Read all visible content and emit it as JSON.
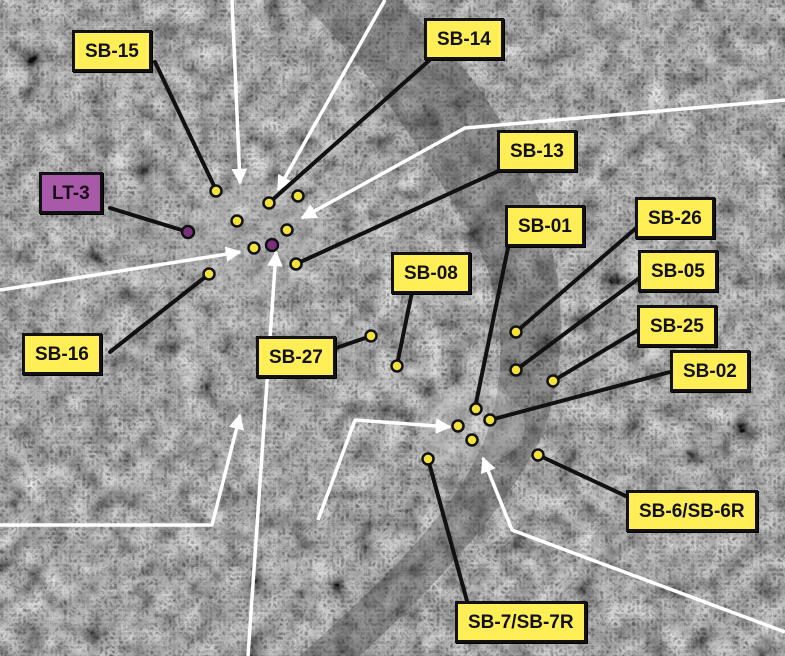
{
  "map": {
    "type": "aerial-photo-sample-location-map",
    "background": "grayscale aerial imagery",
    "colors": {
      "label_fill": "#ffee55",
      "label_border": "#111111",
      "special_label_fill": "#a85aa8",
      "point_fill": "#f2e23a",
      "special_point_fill": "#7a2f7a",
      "boundary_line": "#ffffff",
      "leader_line": "#111111"
    }
  },
  "labels": [
    {
      "id": "SB-15",
      "text": "SB-15"
    },
    {
      "id": "SB-14",
      "text": "SB-14"
    },
    {
      "id": "LT-3",
      "text": "LT-3"
    },
    {
      "id": "SB-13",
      "text": "SB-13"
    },
    {
      "id": "SB-16",
      "text": "SB-16"
    },
    {
      "id": "SB-01",
      "text": "SB-01"
    },
    {
      "id": "SB-26",
      "text": "SB-26"
    },
    {
      "id": "SB-08",
      "text": "SB-08"
    },
    {
      "id": "SB-05",
      "text": "SB-05"
    },
    {
      "id": "SB-25",
      "text": "SB-25"
    },
    {
      "id": "SB-27",
      "text": "SB-27"
    },
    {
      "id": "SB-02",
      "text": "SB-02"
    },
    {
      "id": "SB-6-SB-6R",
      "text": "SB-6/SB-6R"
    },
    {
      "id": "SB-7-SB-7R",
      "text": "SB-7/SB-7R"
    }
  ]
}
